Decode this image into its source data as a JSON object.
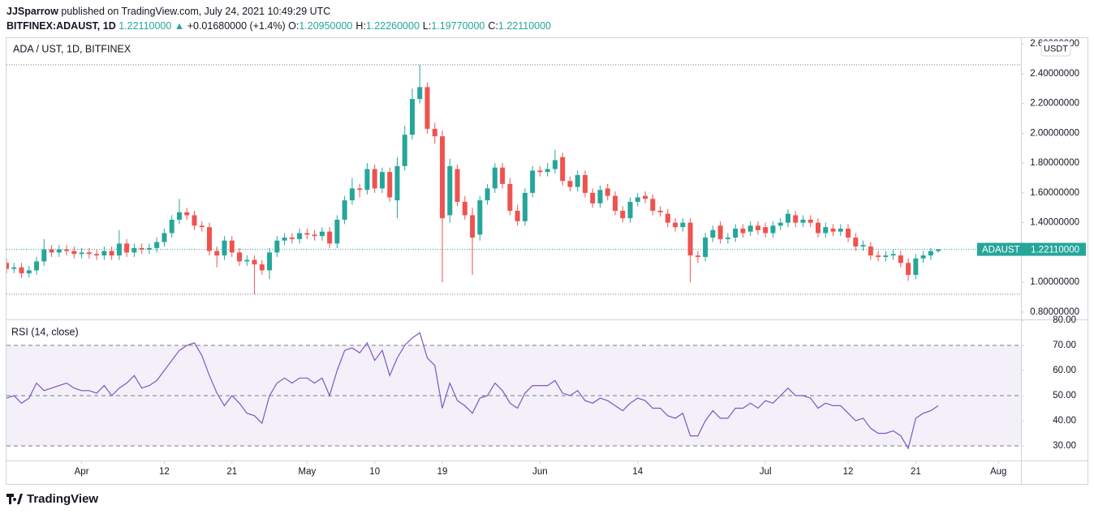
{
  "header": {
    "author": "JJSparrow",
    "published": "published on TradingView.com, July 24, 2021 10:49:29 UTC",
    "symbol": "BITFINEX:ADAUST, 1D",
    "last": "1.22110000",
    "change": "+0.01680000 (+1.4%)",
    "ohlc": [
      [
        "O:",
        "1.20950000"
      ],
      [
        "H:",
        "1.22260000"
      ],
      [
        "L:",
        "1.19770000"
      ],
      [
        "C:",
        "1.22110000"
      ]
    ]
  },
  "footer": {
    "brand": "TradingView"
  },
  "chart_data": [
    {
      "type": "candlestick",
      "title": "ADA / UST, 1D, BITFINEX",
      "unit": "USDT",
      "x": [
        "2021-03-22",
        "2021-03-23",
        "2021-03-24",
        "2021-03-25",
        "2021-03-26",
        "2021-03-27",
        "2021-03-28",
        "2021-03-29",
        "2021-03-30",
        "2021-03-31",
        "2021-04-01",
        "2021-04-02",
        "2021-04-03",
        "2021-04-04",
        "2021-04-05",
        "2021-04-06",
        "2021-04-07",
        "2021-04-08",
        "2021-04-09",
        "2021-04-10",
        "2021-04-11",
        "2021-04-12",
        "2021-04-13",
        "2021-04-14",
        "2021-04-15",
        "2021-04-16",
        "2021-04-17",
        "2021-04-18",
        "2021-04-19",
        "2021-04-20",
        "2021-04-21",
        "2021-04-22",
        "2021-04-23",
        "2021-04-24",
        "2021-04-25",
        "2021-04-26",
        "2021-04-27",
        "2021-04-28",
        "2021-04-29",
        "2021-04-30",
        "2021-05-01",
        "2021-05-02",
        "2021-05-03",
        "2021-05-04",
        "2021-05-05",
        "2021-05-06",
        "2021-05-07",
        "2021-05-08",
        "2021-05-09",
        "2021-05-10",
        "2021-05-11",
        "2021-05-12",
        "2021-05-13",
        "2021-05-14",
        "2021-05-15",
        "2021-05-16",
        "2021-05-17",
        "2021-05-18",
        "2021-05-19",
        "2021-05-20",
        "2021-05-21",
        "2021-05-22",
        "2021-05-23",
        "2021-05-24",
        "2021-05-25",
        "2021-05-26",
        "2021-05-27",
        "2021-05-28",
        "2021-05-29",
        "2021-05-30",
        "2021-05-31",
        "2021-06-01",
        "2021-06-02",
        "2021-06-03",
        "2021-06-04",
        "2021-06-05",
        "2021-06-06",
        "2021-06-07",
        "2021-06-08",
        "2021-06-09",
        "2021-06-10",
        "2021-06-11",
        "2021-06-12",
        "2021-06-13",
        "2021-06-14",
        "2021-06-15",
        "2021-06-16",
        "2021-06-17",
        "2021-06-18",
        "2021-06-19",
        "2021-06-20",
        "2021-06-21",
        "2021-06-22",
        "2021-06-23",
        "2021-06-24",
        "2021-06-25",
        "2021-06-26",
        "2021-06-27",
        "2021-06-28",
        "2021-06-29",
        "2021-06-30",
        "2021-07-01",
        "2021-07-02",
        "2021-07-03",
        "2021-07-04",
        "2021-07-05",
        "2021-07-06",
        "2021-07-07",
        "2021-07-08",
        "2021-07-09",
        "2021-07-10",
        "2021-07-11",
        "2021-07-12",
        "2021-07-13",
        "2021-07-14",
        "2021-07-15",
        "2021-07-16",
        "2021-07-17",
        "2021-07-18",
        "2021-07-19",
        "2021-07-20",
        "2021-07-21",
        "2021-07-22",
        "2021-07-23",
        "2021-07-24"
      ],
      "xlim": [
        "2021-03-22",
        "2021-08-04"
      ],
      "xticks": [
        {
          "value": "2021-04-01",
          "label": "Apr"
        },
        {
          "value": "2021-04-12",
          "label": "12"
        },
        {
          "value": "2021-04-21",
          "label": "21"
        },
        {
          "value": "2021-05-01",
          "label": "May"
        },
        {
          "value": "2021-05-10",
          "label": "10"
        },
        {
          "value": "2021-05-19",
          "label": "19"
        },
        {
          "value": "2021-06-01",
          "label": "Jun"
        },
        {
          "value": "2021-06-14",
          "label": "14"
        },
        {
          "value": "2021-07-01",
          "label": "Jul"
        },
        {
          "value": "2021-07-12",
          "label": "12"
        },
        {
          "value": "2021-07-21",
          "label": "21"
        },
        {
          "value": "2021-08-01",
          "label": "Aug"
        }
      ],
      "ylim": [
        0.756,
        2.639
      ],
      "yticks": [
        {
          "value": 0.8,
          "label": "0.80000000"
        },
        {
          "value": 1.0,
          "label": "1.00000000"
        },
        {
          "value": 1.2,
          "label": "1.20000000"
        },
        {
          "value": 1.4,
          "label": "1.40000000"
        },
        {
          "value": 1.6,
          "label": "1.60000000"
        },
        {
          "value": 1.8,
          "label": "1.80000000"
        },
        {
          "value": 2.0,
          "label": "2.00000000"
        },
        {
          "value": 2.2,
          "label": "2.20000000"
        },
        {
          "value": 2.4,
          "label": "2.40000000"
        },
        {
          "value": 2.6,
          "label": "2.60000000"
        }
      ],
      "series": [
        {
          "name": "ADAUST",
          "color_up": "#26a69a",
          "color_down": "#ef5350",
          "last_label": "1.22110000",
          "open": [
            1.13,
            1.09,
            1.1,
            1.06,
            1.08,
            1.14,
            1.22,
            1.2,
            1.22,
            1.21,
            1.19,
            1.2,
            1.19,
            1.18,
            1.21,
            1.18,
            1.26,
            1.2,
            1.23,
            1.22,
            1.23,
            1.27,
            1.33,
            1.42,
            1.47,
            1.45,
            1.38,
            1.37,
            1.21,
            1.18,
            1.28,
            1.2,
            1.14,
            1.15,
            1.12,
            1.08,
            1.2,
            1.28,
            1.3,
            1.29,
            1.33,
            1.32,
            1.31,
            1.34,
            1.26,
            1.42,
            1.55,
            1.63,
            1.62,
            1.76,
            1.63,
            1.74,
            1.55,
            1.78,
            1.99,
            2.23,
            2.31,
            2.03,
            1.98,
            1.45,
            1.76,
            1.54,
            1.45,
            1.32,
            1.55,
            1.63,
            1.77,
            1.66,
            1.48,
            1.41,
            1.6,
            1.75,
            1.74,
            1.76,
            1.84,
            1.68,
            1.64,
            1.72,
            1.6,
            1.53,
            1.63,
            1.58,
            1.48,
            1.43,
            1.54,
            1.58,
            1.56,
            1.48,
            1.46,
            1.4,
            1.37,
            1.4,
            1.18,
            1.17,
            1.3,
            1.38,
            1.29,
            1.3,
            1.36,
            1.34,
            1.38,
            1.37,
            1.33,
            1.38,
            1.4,
            1.45,
            1.4,
            1.42,
            1.4,
            1.33,
            1.36,
            1.34,
            1.36,
            1.3,
            1.24,
            1.24,
            1.18,
            1.17,
            1.18,
            1.18,
            1.13,
            1.05,
            1.16,
            1.18,
            1.2095
          ],
          "high": [
            1.16,
            1.13,
            1.13,
            1.11,
            1.17,
            1.29,
            1.25,
            1.25,
            1.25,
            1.24,
            1.23,
            1.23,
            1.22,
            1.24,
            1.24,
            1.35,
            1.29,
            1.26,
            1.26,
            1.26,
            1.3,
            1.36,
            1.45,
            1.56,
            1.5,
            1.48,
            1.41,
            1.4,
            1.24,
            1.31,
            1.31,
            1.23,
            1.18,
            1.18,
            1.15,
            1.23,
            1.31,
            1.33,
            1.33,
            1.36,
            1.36,
            1.35,
            1.37,
            1.37,
            1.45,
            1.58,
            1.7,
            1.66,
            1.8,
            1.79,
            1.77,
            1.77,
            1.84,
            2.05,
            2.3,
            2.46,
            2.34,
            2.07,
            2.02,
            1.83,
            1.79,
            1.58,
            1.5,
            1.58,
            1.66,
            1.8,
            1.8,
            1.7,
            1.52,
            1.63,
            1.78,
            1.78,
            1.8,
            1.89,
            1.87,
            1.71,
            1.75,
            1.75,
            1.63,
            1.65,
            1.66,
            1.61,
            1.51,
            1.57,
            1.6,
            1.61,
            1.59,
            1.51,
            1.49,
            1.43,
            1.43,
            1.43,
            1.21,
            1.33,
            1.38,
            1.41,
            1.33,
            1.39,
            1.39,
            1.41,
            1.41,
            1.4,
            1.41,
            1.43,
            1.49,
            1.48,
            1.45,
            1.45,
            1.43,
            1.4,
            1.39,
            1.39,
            1.39,
            1.33,
            1.28,
            1.27,
            1.21,
            1.21,
            1.22,
            1.21,
            1.16,
            1.19,
            1.21,
            1.23,
            1.2226
          ],
          "low": [
            1.06,
            1.06,
            1.03,
            1.03,
            1.05,
            1.11,
            1.17,
            1.17,
            1.18,
            1.16,
            1.16,
            1.16,
            1.15,
            1.15,
            1.15,
            1.15,
            1.17,
            1.17,
            1.19,
            1.19,
            1.2,
            1.24,
            1.3,
            1.39,
            1.42,
            1.35,
            1.34,
            1.18,
            1.1,
            1.15,
            1.17,
            1.11,
            1.11,
            0.92,
            1.05,
            1.02,
            1.17,
            1.25,
            1.26,
            1.26,
            1.29,
            1.28,
            1.28,
            1.23,
            1.23,
            1.39,
            1.52,
            1.57,
            1.59,
            1.6,
            1.6,
            1.54,
            1.43,
            1.75,
            1.96,
            2.2,
            2.0,
            1.93,
            1.0,
            1.4,
            1.51,
            1.42,
            1.05,
            1.28,
            1.52,
            1.6,
            1.63,
            1.45,
            1.38,
            1.38,
            1.57,
            1.71,
            1.71,
            1.73,
            1.65,
            1.61,
            1.61,
            1.57,
            1.5,
            1.5,
            1.55,
            1.45,
            1.4,
            1.4,
            1.51,
            1.53,
            1.45,
            1.44,
            1.37,
            1.34,
            1.34,
            1.0,
            1.13,
            1.14,
            1.27,
            1.26,
            1.26,
            1.27,
            1.3,
            1.31,
            1.32,
            1.3,
            1.3,
            1.35,
            1.37,
            1.37,
            1.37,
            1.37,
            1.3,
            1.3,
            1.31,
            1.31,
            1.27,
            1.21,
            1.21,
            1.15,
            1.14,
            1.14,
            1.15,
            1.1,
            1.01,
            1.02,
            1.13,
            1.15,
            1.1977
          ],
          "close": [
            1.09,
            1.1,
            1.06,
            1.08,
            1.14,
            1.22,
            1.2,
            1.22,
            1.21,
            1.19,
            1.2,
            1.19,
            1.18,
            1.21,
            1.18,
            1.26,
            1.2,
            1.23,
            1.22,
            1.23,
            1.27,
            1.33,
            1.42,
            1.47,
            1.45,
            1.38,
            1.37,
            1.21,
            1.18,
            1.28,
            1.2,
            1.14,
            1.15,
            1.12,
            1.08,
            1.2,
            1.28,
            1.3,
            1.29,
            1.33,
            1.32,
            1.31,
            1.34,
            1.26,
            1.42,
            1.55,
            1.63,
            1.62,
            1.76,
            1.63,
            1.74,
            1.57,
            1.78,
            1.99,
            2.23,
            2.31,
            2.03,
            1.98,
            1.43,
            1.78,
            1.54,
            1.45,
            1.3,
            1.55,
            1.63,
            1.77,
            1.66,
            1.48,
            1.41,
            1.6,
            1.75,
            1.74,
            1.76,
            1.82,
            1.68,
            1.64,
            1.72,
            1.6,
            1.53,
            1.62,
            1.58,
            1.48,
            1.43,
            1.54,
            1.57,
            1.56,
            1.48,
            1.47,
            1.4,
            1.37,
            1.4,
            1.18,
            1.17,
            1.3,
            1.35,
            1.29,
            1.3,
            1.36,
            1.33,
            1.38,
            1.35,
            1.33,
            1.38,
            1.4,
            1.46,
            1.4,
            1.42,
            1.4,
            1.33,
            1.37,
            1.34,
            1.36,
            1.3,
            1.24,
            1.25,
            1.18,
            1.17,
            1.18,
            1.19,
            1.13,
            1.05,
            1.16,
            1.18,
            1.2095,
            1.2211
          ]
        }
      ]
    },
    {
      "type": "line",
      "title": "RSI (14, close)",
      "ylim": [
        24.2,
        80
      ],
      "yticks": [
        {
          "value": 30,
          "label": "30.00"
        },
        {
          "value": 40,
          "label": "40.00"
        },
        {
          "value": 50,
          "label": "50.00"
        },
        {
          "value": 60,
          "label": "60.00"
        },
        {
          "value": 70,
          "label": "70.00"
        },
        {
          "value": 80,
          "label": "80.00"
        }
      ],
      "levels": [
        70,
        50,
        30
      ],
      "band_color": "#7e57c2",
      "series": [
        {
          "color": "#7e57c2",
          "values": [
            49,
            50,
            47,
            49,
            55,
            52,
            53,
            54,
            55,
            53,
            52,
            52,
            51,
            54,
            50,
            53,
            55,
            58,
            53,
            54,
            56,
            60,
            64,
            68,
            70,
            71,
            66,
            58,
            51,
            46,
            50,
            47,
            43,
            42,
            39,
            50,
            55,
            57,
            55,
            57,
            57,
            55,
            57,
            50,
            60,
            68,
            69,
            67,
            71,
            64,
            68,
            58,
            65,
            70,
            73,
            75,
            65,
            62,
            45,
            55,
            48,
            46,
            43,
            49,
            50,
            55,
            52,
            47,
            45,
            51,
            54,
            54,
            54,
            56,
            51,
            50,
            52,
            48,
            47,
            49,
            48,
            46,
            44,
            47,
            49,
            48,
            45,
            45,
            42,
            41,
            43,
            34,
            34,
            40,
            44,
            41,
            41,
            45,
            45,
            47,
            45,
            48,
            47,
            50,
            53,
            50,
            50,
            49,
            45,
            47,
            46,
            46,
            43,
            40,
            41,
            37,
            35,
            35,
            36,
            34,
            29,
            41,
            43,
            44,
            46
          ]
        }
      ]
    }
  ]
}
